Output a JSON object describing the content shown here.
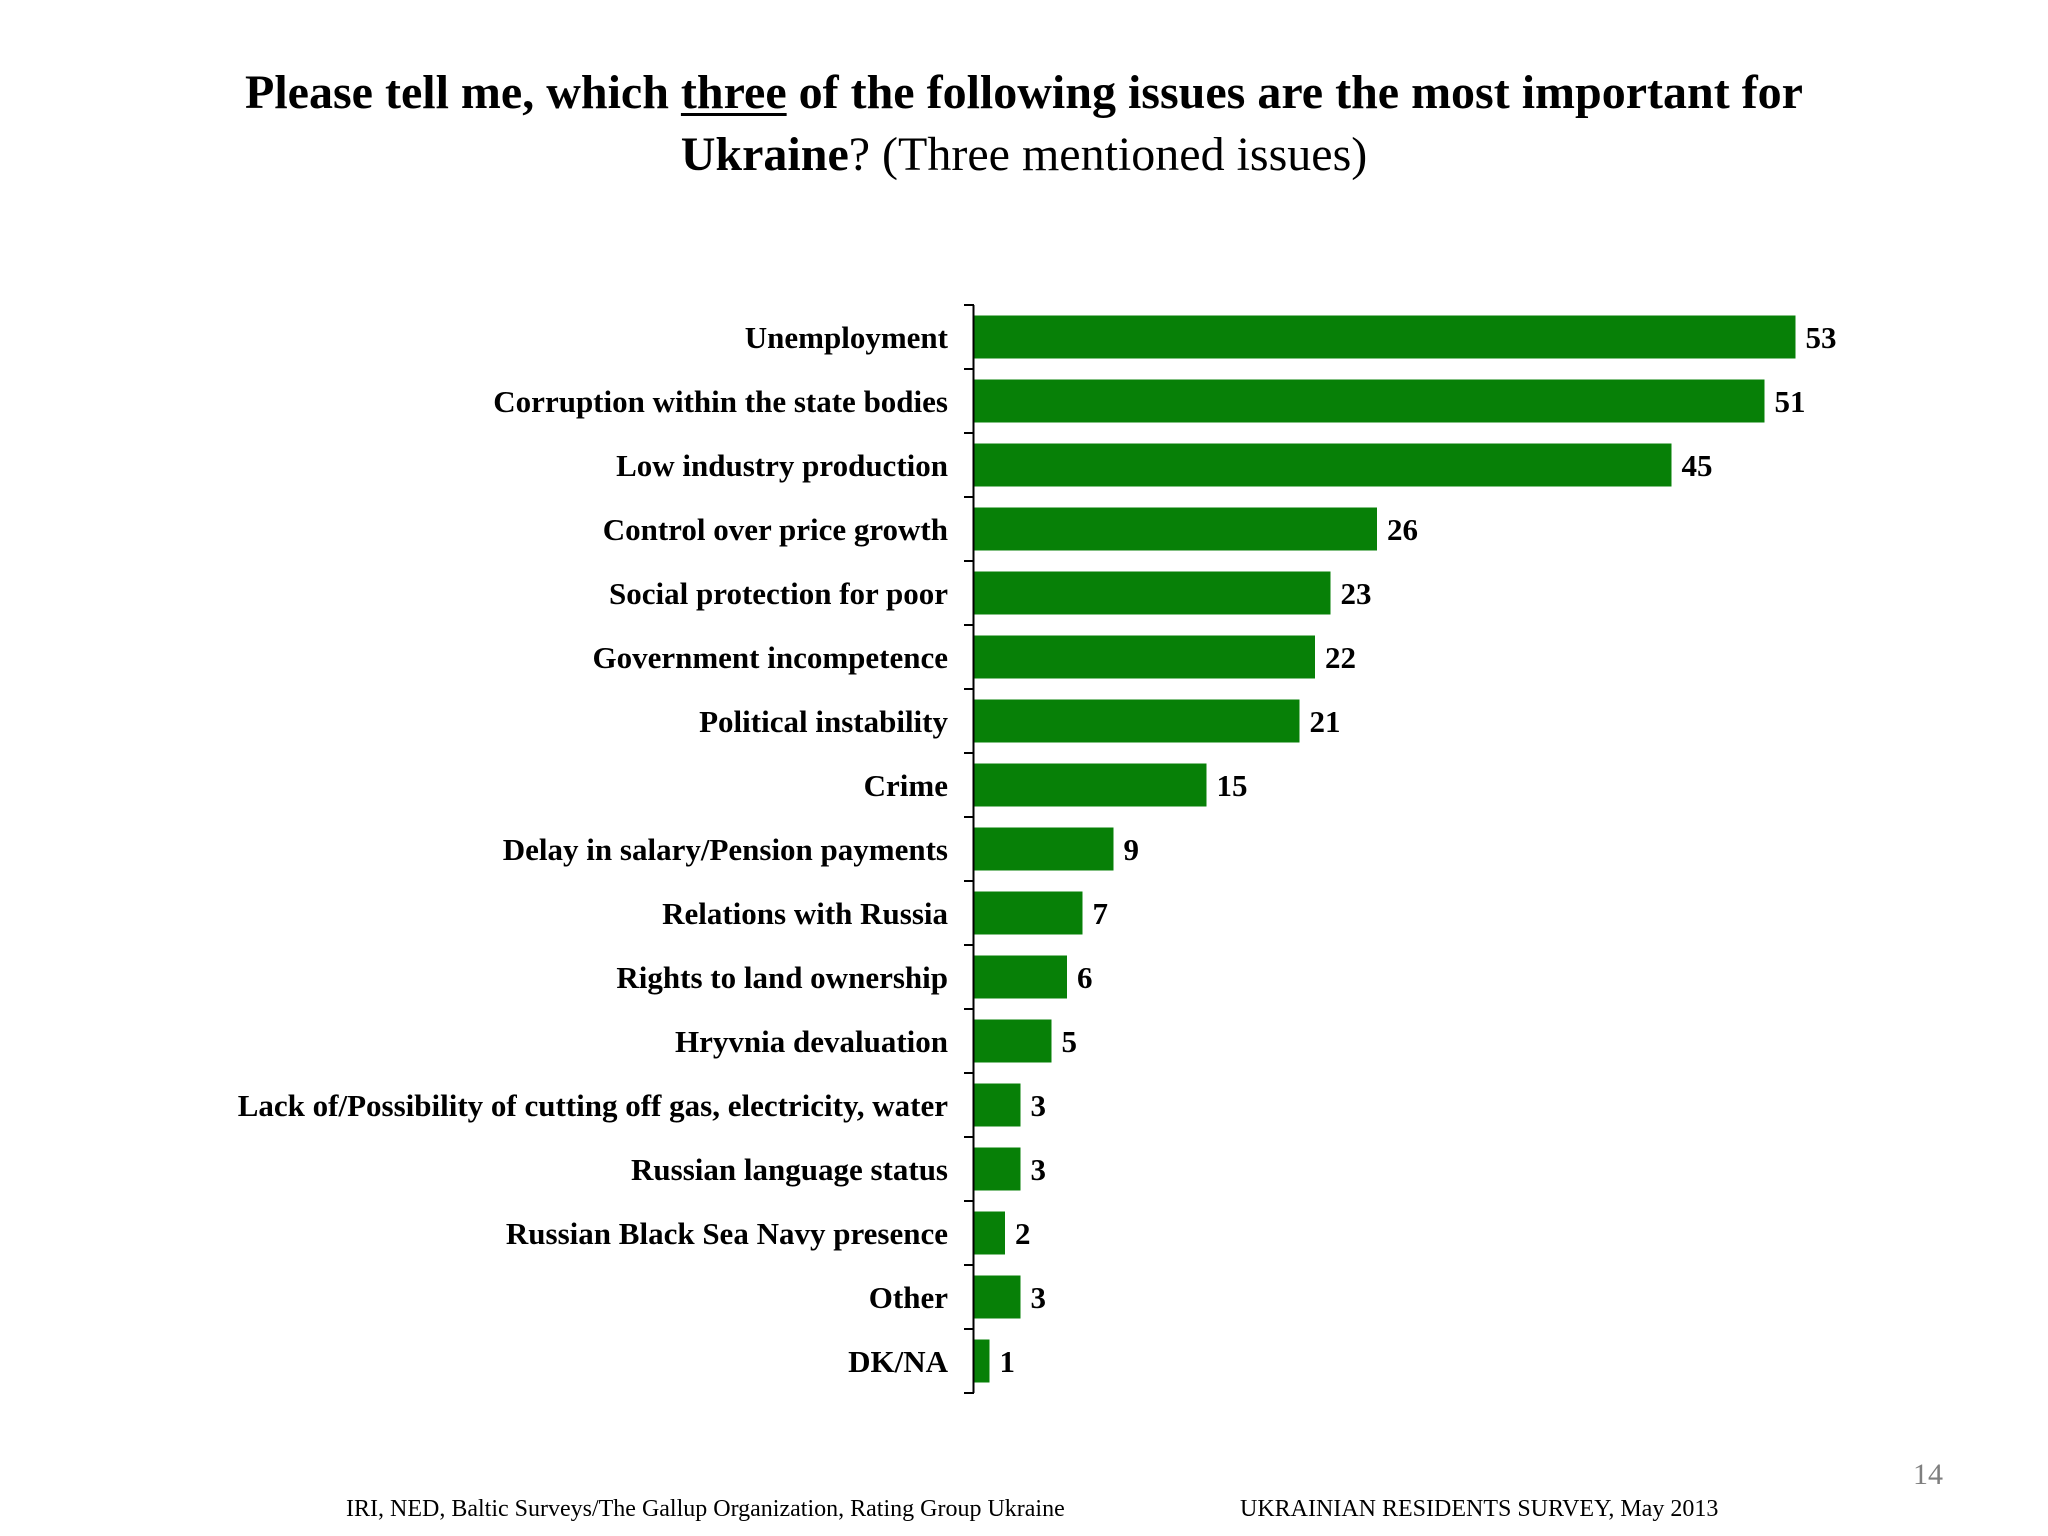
{
  "title": {
    "part1": "Please tell me, which ",
    "emphasis": "three",
    "part2": " of the following issues are the most important for",
    "part3": "Ukraine",
    "part4": "? (Three mentioned issues)"
  },
  "chart_data": {
    "type": "bar",
    "orientation": "horizontal",
    "title": "Please tell me, which three of the following issues are the most important for Ukraine? (Three mentioned issues)",
    "xlabel": "",
    "ylabel": "",
    "xlim": [
      0,
      55
    ],
    "grid": false,
    "legend": "none",
    "bar_color": "#078007",
    "categories": [
      "Unemployment",
      "Corruption within the state bodies",
      "Low industry production",
      "Control over price growth",
      "Social protection for poor",
      "Government incompetence",
      "Political instability",
      "Crime",
      "Delay in salary/Pension payments",
      "Relations with Russia",
      "Rights to land ownership",
      "Hryvnia devaluation",
      "Lack of/Possibility of cutting off gas, electricity, water",
      "Russian language status",
      "Russian Black Sea Navy presence",
      "Other",
      "DK/NA"
    ],
    "values": [
      53,
      51,
      45,
      26,
      23,
      22,
      21,
      15,
      9,
      7,
      6,
      5,
      3,
      3,
      2,
      3,
      1
    ]
  },
  "footer": {
    "source": "IRI, NED,  Baltic Surveys/The Gallup Organization, Rating Group Ukraine",
    "survey": "UKRAINIAN RESIDENTS SURVEY, May  2013",
    "page_number": "14"
  }
}
